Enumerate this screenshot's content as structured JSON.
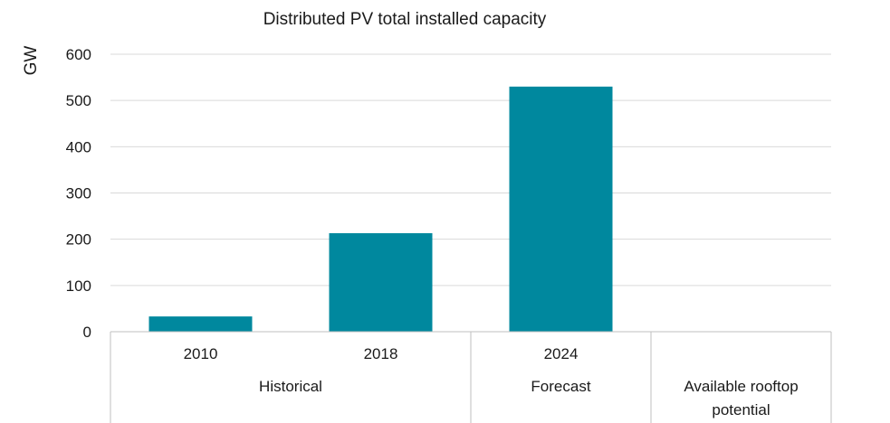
{
  "chart_data": {
    "type": "bar",
    "title": "Distributed PV total installed capacity",
    "ylabel": "GW",
    "xlabel": "",
    "ylim": [
      0,
      600
    ],
    "yticks": [
      0,
      100,
      200,
      300,
      400,
      500,
      600
    ],
    "categories": [
      "2010",
      "2018",
      "2024",
      ""
    ],
    "values": [
      33,
      213,
      530,
      null
    ],
    "groups": [
      {
        "label": "Historical",
        "span": [
          0,
          1
        ]
      },
      {
        "label": "Forecast",
        "span": [
          2,
          2
        ]
      },
      {
        "label": "Available rooftop potential",
        "label_lines": [
          "Available rooftop",
          "potential"
        ],
        "span": [
          3,
          3
        ]
      }
    ],
    "bar_color": "#00889E",
    "grid": true,
    "legend": "none"
  }
}
